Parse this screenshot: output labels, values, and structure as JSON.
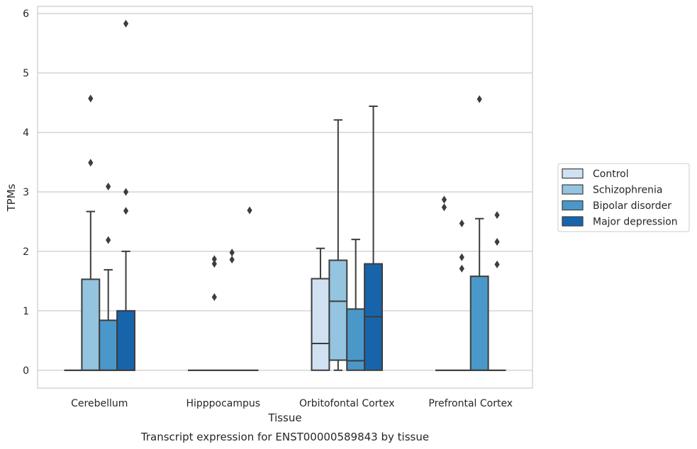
{
  "chart_data": {
    "type": "boxplot",
    "xlabel": "Tissue",
    "ylabel": "TPMs",
    "caption": "Transcript expression for ENST00000589843 by tissue",
    "ylim": [
      -0.3,
      6.12
    ],
    "yticks": [
      0,
      1,
      2,
      3,
      4,
      5,
      6
    ],
    "grid": true,
    "legend_position": "right",
    "categories": [
      "Cerebellum",
      "Hipppocampus",
      "Orbitofontal Cortex",
      "Prefrontal Cortex"
    ],
    "series": [
      {
        "name": "Control",
        "color": "#d0e1f2",
        "boxes": [
          {
            "q1": 0,
            "median": 0,
            "q3": 0,
            "whislo": 0,
            "whishi": 0,
            "fliers": []
          },
          {
            "q1": 0,
            "median": 0,
            "q3": 0,
            "whislo": 0,
            "whishi": 0,
            "fliers": []
          },
          {
            "q1": 0,
            "median": 0.45,
            "q3": 1.54,
            "whislo": 0,
            "whishi": 2.05,
            "fliers": []
          },
          {
            "q1": 0,
            "median": 0,
            "q3": 0,
            "whislo": 0,
            "whishi": 0,
            "fliers": [
              2.87,
              2.74
            ]
          }
        ]
      },
      {
        "name": "Schizophrenia",
        "color": "#94c4df",
        "boxes": [
          {
            "q1": 0,
            "median": 0,
            "q3": 1.53,
            "whislo": 0,
            "whishi": 2.67,
            "fliers": [
              3.49,
              4.57
            ]
          },
          {
            "q1": 0,
            "median": 0,
            "q3": 0,
            "whislo": 0,
            "whishi": 0,
            "fliers": [
              1.87,
              1.79,
              1.23
            ]
          },
          {
            "q1": 0.17,
            "median": 1.16,
            "q3": 1.85,
            "whislo": 0,
            "whishi": 4.21,
            "fliers": []
          },
          {
            "q1": 0,
            "median": 0,
            "q3": 0,
            "whislo": 0,
            "whishi": 0,
            "fliers": [
              2.47,
              1.9,
              1.71
            ]
          }
        ]
      },
      {
        "name": "Bipolar disorder",
        "color": "#4a98c9",
        "boxes": [
          {
            "q1": 0,
            "median": 0,
            "q3": 0.84,
            "whislo": 0,
            "whishi": 1.69,
            "fliers": [
              3.09,
              2.19
            ]
          },
          {
            "q1": 0,
            "median": 0,
            "q3": 0,
            "whislo": 0,
            "whishi": 0,
            "fliers": [
              1.98,
              1.86
            ]
          },
          {
            "q1": 0,
            "median": 0.16,
            "q3": 1.03,
            "whislo": 0,
            "whishi": 2.2,
            "fliers": []
          },
          {
            "q1": 0,
            "median": 0,
            "q3": 1.58,
            "whislo": 0,
            "whishi": 2.55,
            "fliers": [
              4.56
            ]
          }
        ]
      },
      {
        "name": "Major depression",
        "color": "#1764ab",
        "boxes": [
          {
            "q1": 0,
            "median": 0,
            "q3": 1.0,
            "whislo": 0,
            "whishi": 2.0,
            "fliers": [
              5.83,
              3.0,
              2.68
            ]
          },
          {
            "q1": 0,
            "median": 0,
            "q3": 0,
            "whislo": 0,
            "whishi": 0,
            "fliers": [
              2.69
            ]
          },
          {
            "q1": 0,
            "median": 0.9,
            "q3": 1.79,
            "whislo": 0,
            "whishi": 4.44,
            "fliers": []
          },
          {
            "q1": 0,
            "median": 0,
            "q3": 0,
            "whislo": 0,
            "whishi": 0,
            "fliers": [
              2.61,
              2.16,
              1.78
            ]
          }
        ]
      }
    ]
  }
}
